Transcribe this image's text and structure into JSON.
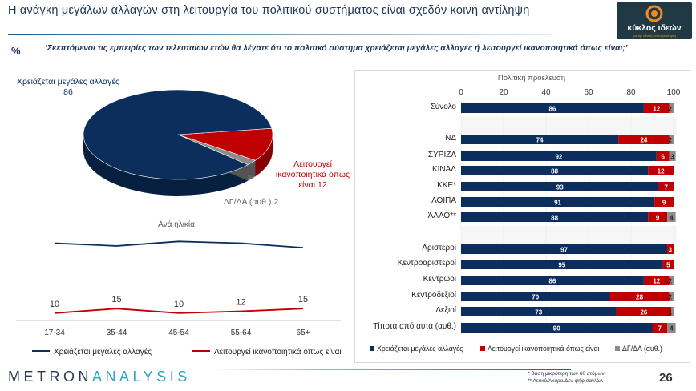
{
  "header": {
    "title": "Η ανάγκη μεγάλων αλλαγών στη λειτουργία του πολιτικού συστήματος είναι σχεδόν κοινή αντίληψη",
    "logo_name": "κύκλος ιδεών",
    "logo_tagline": "για την εθνική ανασυγκρότηση"
  },
  "question": {
    "symbol": "%",
    "text": "‘Σκεπτόμενοι τις εμπειρίες των τελευταίων ετών θα λέγατε ότι το πολιτικό σύστημα χρειάζεται μεγάλες αλλαγές ή λειτουργεί ικανοποιητικά όπως είναι;’"
  },
  "colors": {
    "navy": "#0b2e5c",
    "red": "#c00000",
    "gray": "#8c8c8c"
  },
  "chart_data": [
    {
      "type": "pie",
      "labels": [
        "Χρειάζεται μεγάλες αλλαγές",
        "Λειτουργεί ικανοποιητικά όπως είναι",
        "ΔΓ/ΔΑ (αυθ.)"
      ],
      "values": [
        86,
        12,
        2
      ],
      "display_labels": [
        "Χρειάζεται μεγάλες αλλαγές 86",
        "Λειτουργεί ικανοποιητικά όπως είναι 12",
        "ΔΓ/ΔΑ (αυθ.) 2"
      ],
      "colors": [
        "#0b2e5c",
        "#c00000",
        "#8c8c8c"
      ]
    },
    {
      "type": "line",
      "title": "Ανά ηλικία",
      "categories": [
        "17-34",
        "35-44",
        "45-54",
        "55-64",
        "65+"
      ],
      "series": [
        {
          "name": "Χρειάζεται μεγάλες αλλαγές",
          "values": [
            87,
            84,
            89,
            87,
            82
          ],
          "color": "#0b2e5c"
        },
        {
          "name": "Λειτουργεί ικανοποιητικά όπως είναι",
          "values": [
            10,
            15,
            10,
            12,
            15
          ],
          "color": "#c00000"
        }
      ],
      "grid": false,
      "legend_position": "bottom"
    },
    {
      "type": "bar",
      "orientation": "horizontal",
      "stacked": true,
      "title": "Πολιτική προέλευση",
      "xlim": [
        0,
        100
      ],
      "xticks": [
        "0",
        "20",
        "40",
        "60",
        "80",
        "100"
      ],
      "categories": [
        "Σύνολο",
        "ΝΔ",
        "ΣΥΡΙΖΑ",
        "ΚΙΝΑΛ",
        "ΚΚΕ*",
        "ΛΟΙΠΑ",
        "ΆΛΛΟ**",
        "Αριστεροί",
        "Κεντροαριστεροί",
        "Κεντρώοι",
        "Κεντροδεξιοί",
        "Δεξιοί",
        "Τίποτα από αυτά (αυθ.)"
      ],
      "series": [
        {
          "name": "Χρειάζεται μεγάλες αλλαγές",
          "color": "#0b2e5c",
          "values": [
            86,
            74,
            92,
            88,
            93,
            91,
            88,
            97,
            95,
            86,
            70,
            73,
            90
          ]
        },
        {
          "name": "Λειτουργεί ικανοποιητικά όπως είναι",
          "color": "#c00000",
          "values": [
            12,
            24,
            6,
            12,
            7,
            9,
            9,
            3,
            5,
            12,
            28,
            26,
            7
          ]
        },
        {
          "name": "ΔΓ/ΔΑ (αυθ.)",
          "color": "#8c8c8c",
          "values": [
            2,
            2,
            3,
            null,
            null,
            null,
            4,
            null,
            null,
            2,
            2,
            1,
            4
          ]
        }
      ],
      "legend_position": "bottom"
    }
  ],
  "footer": {
    "brand_part1": "METRON",
    "brand_part2": "ANALYSIS",
    "note1": "*  Βάση μικρότερη των 60 ατόμων",
    "note2": "** Λευκό/Άκυρο/Δεν ψήφισαν/ΔΑ",
    "page_number": "26"
  }
}
